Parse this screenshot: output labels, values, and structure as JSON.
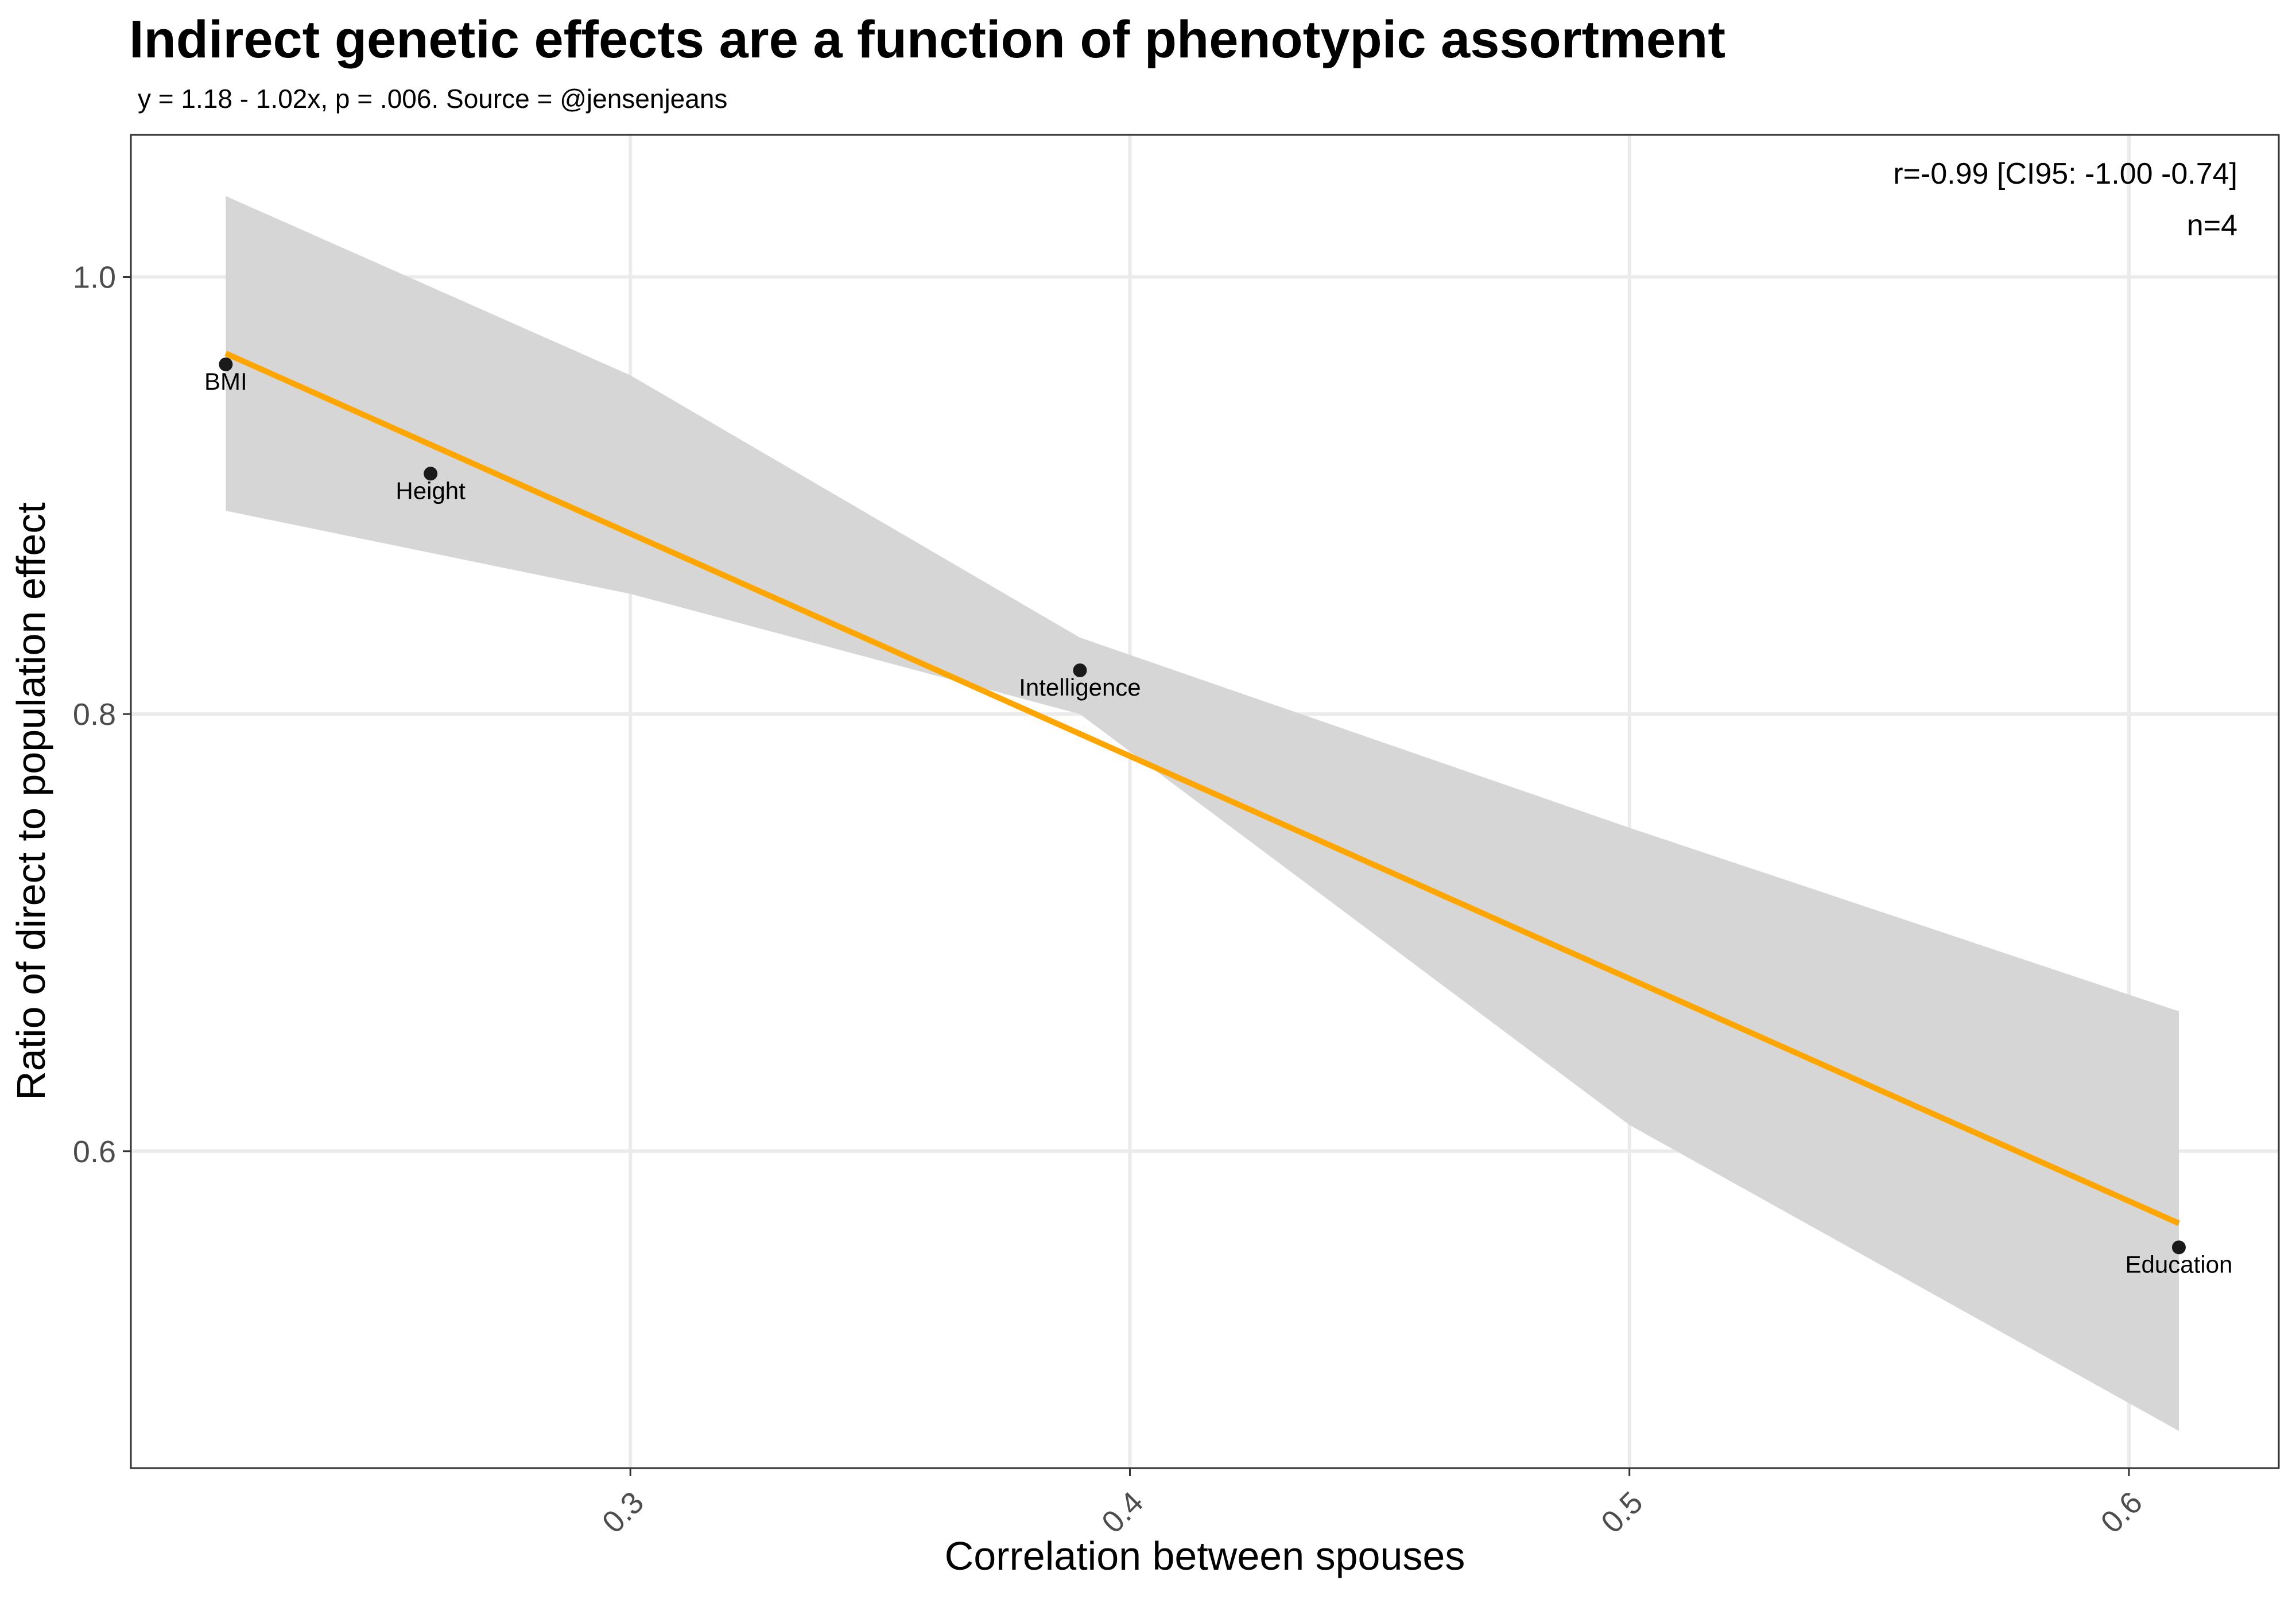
{
  "chart_data": {
    "type": "scatter",
    "title": "Indirect genetic effects are a function of phenotypic assortment",
    "subtitle": "y = 1.18 - 1.02x, p = .006. Source = @jensenjeans",
    "xlabel": "Correlation between spouses",
    "ylabel": "Ratio of direct to population effect",
    "xlim": [
      0.2,
      0.63
    ],
    "ylim": [
      0.455,
      1.065
    ],
    "x_ticks": [
      0.3,
      0.4,
      0.5,
      0.6
    ],
    "x_tick_labels": [
      "0.3",
      "0.4",
      "0.5",
      "0.6"
    ],
    "y_ticks": [
      0.6,
      0.8,
      1.0
    ],
    "y_tick_labels": [
      "0.6",
      "0.8",
      "1.0"
    ],
    "grid": true,
    "points": [
      {
        "label": "BMI",
        "x": 0.219,
        "y": 0.96
      },
      {
        "label": "Height",
        "x": 0.26,
        "y": 0.91
      },
      {
        "label": "Intelligence",
        "x": 0.39,
        "y": 0.82
      },
      {
        "label": "Education",
        "x": 0.61,
        "y": 0.556
      }
    ],
    "fit_line": {
      "color": "#FFA500",
      "x": [
        0.219,
        0.61
      ],
      "y": [
        0.965,
        0.567
      ]
    },
    "confidence_band": {
      "color": "#d6d6d6",
      "x": [
        0.219,
        0.3,
        0.39,
        0.5,
        0.61
      ],
      "upper": [
        1.037,
        0.955,
        0.835,
        0.748,
        0.664
      ],
      "lower": [
        0.893,
        0.855,
        0.8,
        0.612,
        0.472
      ]
    },
    "annotations": [
      "r=-0.99 [CI95: -1.00 -0.74]",
      "n=4"
    ],
    "legend": "none"
  }
}
